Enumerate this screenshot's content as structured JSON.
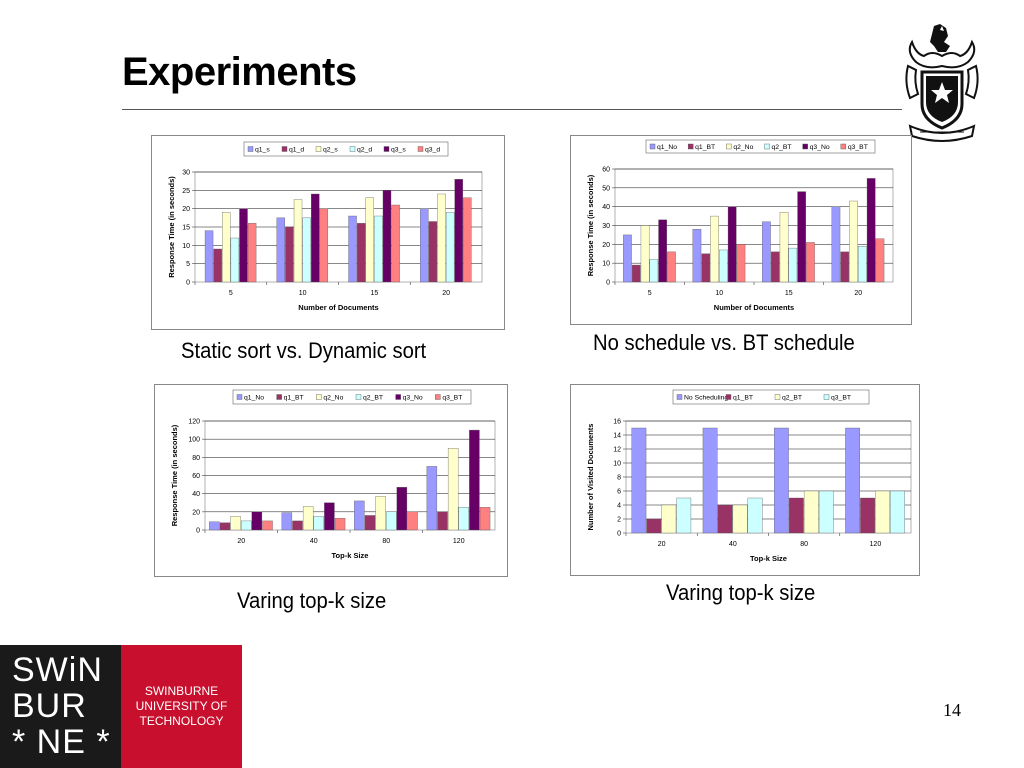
{
  "slide": {
    "title": "Experiments",
    "page_number": "14",
    "captions": [
      "Static sort vs. Dynamic sort",
      "No schedule vs. BT schedule",
      "Varing top-k size",
      "Varing top-k size"
    ]
  },
  "logo": {
    "mark_lines": [
      "SWiN",
      "BUR",
      "* NE *"
    ],
    "name_lines": [
      "SWINBURNE",
      "UNIVERSITY OF",
      "TECHNOLOGY"
    ]
  },
  "colors": {
    "logo_dark": "#1a1a1a",
    "logo_red": "#c8102e",
    "series": [
      "#9999FF",
      "#993366",
      "#FFFFCC",
      "#CCFFFF",
      "#660066",
      "#FF8080"
    ]
  },
  "chart_data": [
    {
      "type": "bar",
      "categories": [
        "5",
        "10",
        "15",
        "20"
      ],
      "series": [
        {
          "name": "q1_s",
          "values": [
            14,
            17.5,
            18,
            20
          ]
        },
        {
          "name": "q1_d",
          "values": [
            9,
            15,
            16,
            16.5
          ]
        },
        {
          "name": "q2_s",
          "values": [
            19,
            22.5,
            23,
            24
          ]
        },
        {
          "name": "q2_d",
          "values": [
            12,
            17.5,
            18,
            19
          ]
        },
        {
          "name": "q3_s",
          "values": [
            20,
            24,
            25,
            28
          ]
        },
        {
          "name": "q3_d",
          "values": [
            16,
            20,
            21,
            23
          ]
        }
      ],
      "xlabel": "Number of Documents",
      "ylabel": "Response Time (in seconds)",
      "ylim": [
        0,
        30
      ],
      "yticks": [
        0,
        5,
        10,
        15,
        20,
        25,
        30
      ],
      "grid": true,
      "legend": "top"
    },
    {
      "type": "bar",
      "categories": [
        "5",
        "10",
        "15",
        "20"
      ],
      "series": [
        {
          "name": "q1_No",
          "values": [
            25,
            28,
            32,
            40
          ]
        },
        {
          "name": "q1_BT",
          "values": [
            9,
            15,
            16,
            16
          ]
        },
        {
          "name": "q2_No",
          "values": [
            30,
            35,
            37,
            43
          ]
        },
        {
          "name": "q2_BT",
          "values": [
            12,
            17,
            18,
            19
          ]
        },
        {
          "name": "q3_No",
          "values": [
            33,
            40,
            48,
            55
          ]
        },
        {
          "name": "q3_BT",
          "values": [
            16,
            20,
            21,
            23
          ]
        }
      ],
      "xlabel": "Number of Documents",
      "ylabel": "Response Time (in seconds)",
      "ylim": [
        0,
        60
      ],
      "yticks": [
        0,
        10,
        20,
        30,
        40,
        50,
        60
      ],
      "grid": true,
      "legend": "top"
    },
    {
      "type": "bar",
      "categories": [
        "20",
        "40",
        "80",
        "120"
      ],
      "series": [
        {
          "name": "q1_No",
          "values": [
            9,
            19,
            32,
            70
          ]
        },
        {
          "name": "q1_BT",
          "values": [
            8,
            10,
            16,
            20
          ]
        },
        {
          "name": "q2_No",
          "values": [
            15,
            26,
            37,
            90
          ]
        },
        {
          "name": "q2_BT",
          "values": [
            10,
            15,
            20,
            25
          ]
        },
        {
          "name": "q3_No",
          "values": [
            20,
            30,
            47,
            110
          ]
        },
        {
          "name": "q3_BT",
          "values": [
            10,
            13,
            20,
            25
          ]
        }
      ],
      "xlabel": "Top-k Size",
      "ylabel": "Response Time (in seconds)",
      "ylim": [
        0,
        120
      ],
      "yticks": [
        0,
        20,
        40,
        60,
        80,
        100,
        120
      ],
      "grid": true,
      "legend": "top"
    },
    {
      "type": "bar",
      "categories": [
        "20",
        "40",
        "80",
        "120"
      ],
      "series": [
        {
          "name": "No Scheduling",
          "values": [
            15,
            15,
            15,
            15
          ]
        },
        {
          "name": "q1_BT",
          "values": [
            2,
            4,
            5,
            5
          ]
        },
        {
          "name": "q2_BT",
          "values": [
            4,
            4,
            6,
            6
          ]
        },
        {
          "name": "q3_BT",
          "values": [
            5,
            5,
            6,
            6
          ]
        }
      ],
      "series_colors": [
        "#9999FF",
        "#993366",
        "#FFFFCC",
        "#CCFFFF"
      ],
      "xlabel": "Top-k Size",
      "ylabel": "Number of Visited Documents",
      "ylim": [
        0,
        16
      ],
      "yticks": [
        0,
        2,
        4,
        6,
        8,
        10,
        12,
        14,
        16
      ],
      "grid": true,
      "legend": "top"
    }
  ]
}
